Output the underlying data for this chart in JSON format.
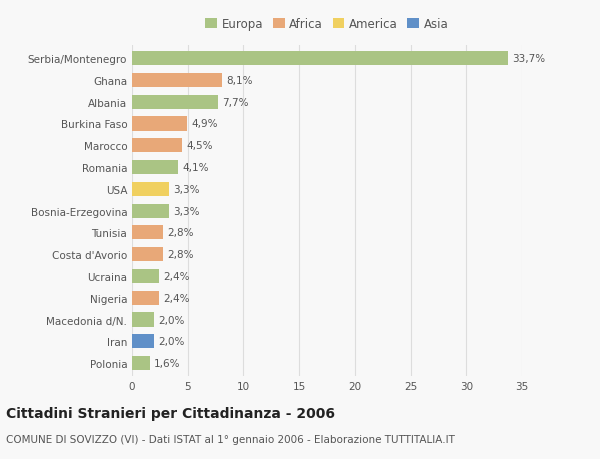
{
  "countries": [
    "Serbia/Montenegro",
    "Ghana",
    "Albania",
    "Burkina Faso",
    "Marocco",
    "Romania",
    "USA",
    "Bosnia-Erzegovina",
    "Tunisia",
    "Costa d'Avorio",
    "Ucraina",
    "Nigeria",
    "Macedonia d/N.",
    "Iran",
    "Polonia"
  ],
  "values": [
    33.7,
    8.1,
    7.7,
    4.9,
    4.5,
    4.1,
    3.3,
    3.3,
    2.8,
    2.8,
    2.4,
    2.4,
    2.0,
    2.0,
    1.6
  ],
  "labels": [
    "33,7%",
    "8,1%",
    "7,7%",
    "4,9%",
    "4,5%",
    "4,1%",
    "3,3%",
    "3,3%",
    "2,8%",
    "2,8%",
    "2,4%",
    "2,4%",
    "2,0%",
    "2,0%",
    "1,6%"
  ],
  "continents": [
    "Europa",
    "Africa",
    "Europa",
    "Africa",
    "Africa",
    "Europa",
    "America",
    "Europa",
    "Africa",
    "Africa",
    "Europa",
    "Africa",
    "Europa",
    "Asia",
    "Europa"
  ],
  "continent_colors": {
    "Europa": "#aac484",
    "Africa": "#e8a878",
    "America": "#f0d060",
    "Asia": "#6090c8"
  },
  "legend_order": [
    "Europa",
    "Africa",
    "America",
    "Asia"
  ],
  "title": "Cittadini Stranieri per Cittadinanza - 2006",
  "subtitle": "COMUNE DI SOVIZZO (VI) - Dati ISTAT al 1° gennaio 2006 - Elaborazione TUTTITALIA.IT",
  "xlim": [
    0,
    35
  ],
  "xticks": [
    0,
    5,
    10,
    15,
    20,
    25,
    30,
    35
  ],
  "background_color": "#f8f8f8",
  "grid_color": "#dddddd",
  "bar_height": 0.65,
  "title_fontsize": 10,
  "subtitle_fontsize": 7.5,
  "label_fontsize": 7.5,
  "tick_fontsize": 7.5,
  "legend_fontsize": 8.5
}
